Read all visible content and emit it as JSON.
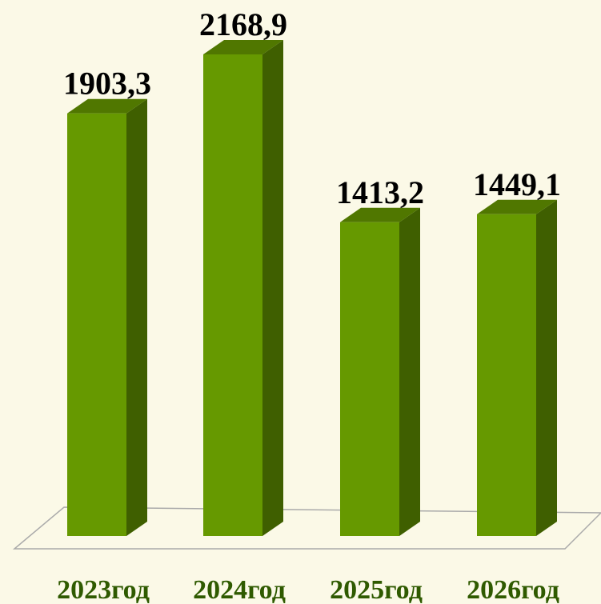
{
  "chart_data": {
    "type": "bar3d",
    "categories": [
      "2023год",
      "2024год",
      "2025год",
      "2026год"
    ],
    "values": [
      1903.3,
      2168.9,
      1413.2,
      1449.1
    ],
    "value_labels": [
      "1903,3",
      "2168,9",
      "1413,2",
      "1449,1"
    ],
    "color": "#669900"
  }
}
